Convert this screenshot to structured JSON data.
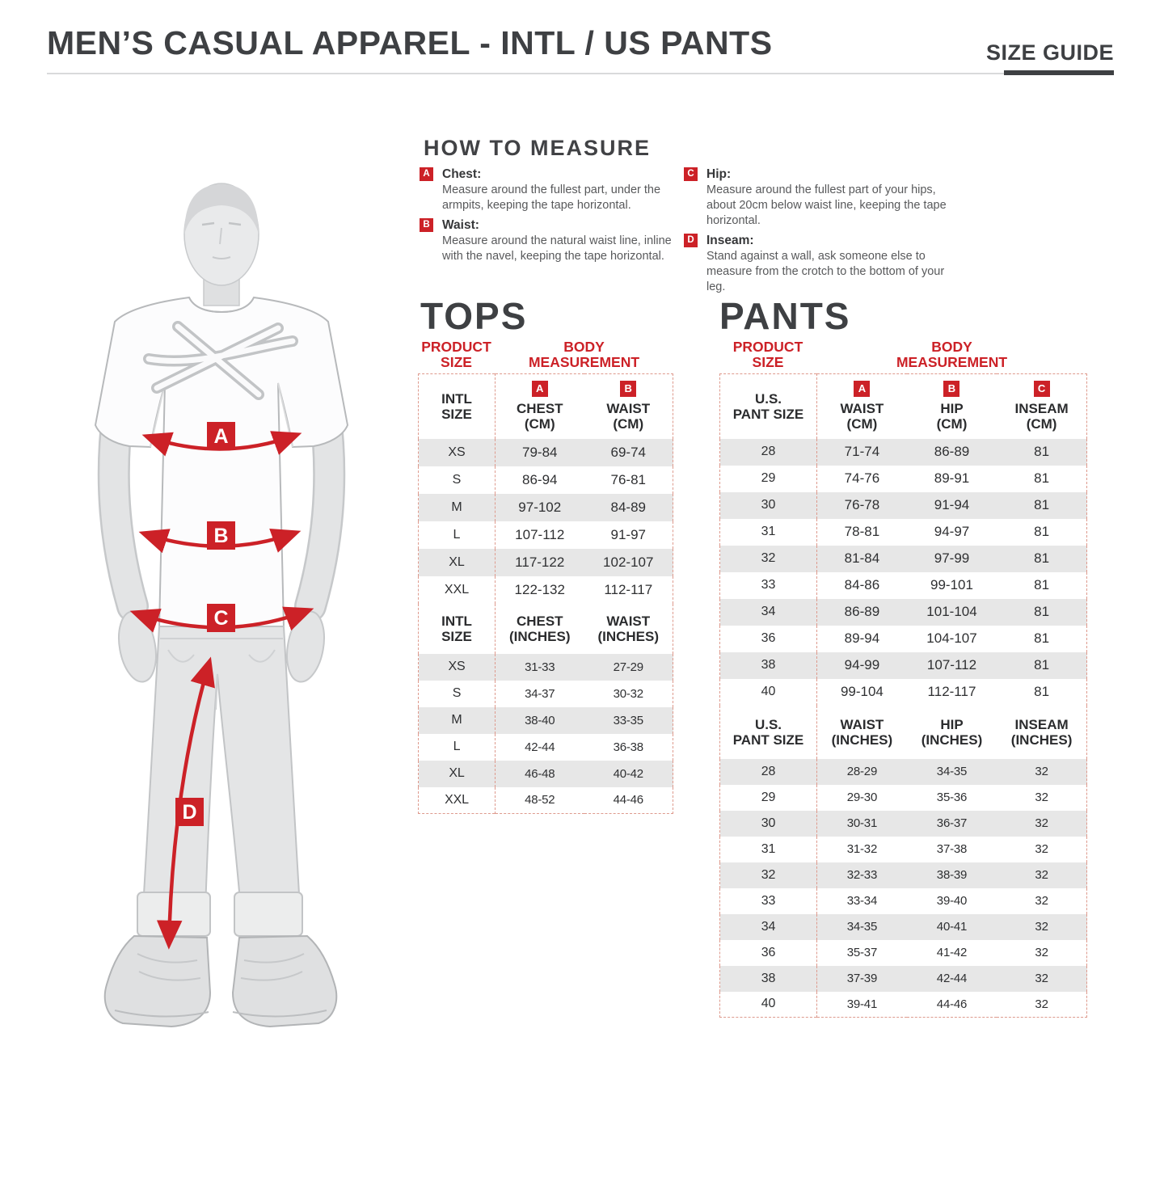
{
  "header": {
    "title": "MEN’S CASUAL APPAREL - INTL / US PANTS",
    "size_guide": "SIZE GUIDE"
  },
  "colors": {
    "accent_red": "#cc2127",
    "dashed_border": "#de9a8d",
    "row_gray": "#e7e7e7",
    "heading_gray": "#3e4043",
    "desc_gray": "#58595b"
  },
  "how_to_measure": {
    "heading": "HOW TO MEASURE",
    "items": [
      {
        "key": "A",
        "label": "Chest:",
        "desc": "Measure around the fullest part, under the armpits, keeping the tape horizontal."
      },
      {
        "key": "B",
        "label": "Waist:",
        "desc": "Measure around the natural waist line, inline with the navel, keeping the tape horizontal."
      },
      {
        "key": "C",
        "label": "Hip:",
        "desc": "Measure around the fullest part of your hips, about 20cm below waist line, keeping the tape horizontal."
      },
      {
        "key": "D",
        "label": "Inseam:",
        "desc": "Stand against a wall, ask someone else to measure from the crotch to the bottom of your leg."
      }
    ]
  },
  "figure": {
    "markers": [
      "A",
      "B",
      "C",
      "D"
    ]
  },
  "tops": {
    "heading": "TOPS",
    "product_size_label": "PRODUCT\nSIZE",
    "body_measurement_label": "BODY\nMEASUREMENT",
    "cm_section": {
      "size_header": "INTL\nSIZE",
      "columns": [
        {
          "badge": "A",
          "label": "CHEST\n(CM)"
        },
        {
          "badge": "B",
          "label": "WAIST\n(CM)"
        }
      ],
      "rows": [
        [
          "XS",
          "79-84",
          "69-74"
        ],
        [
          "S",
          "86-94",
          "76-81"
        ],
        [
          "M",
          "97-102",
          "84-89"
        ],
        [
          "L",
          "107-112",
          "91-97"
        ],
        [
          "XL",
          "117-122",
          "102-107"
        ],
        [
          "XXL",
          "122-132",
          "112-117"
        ]
      ]
    },
    "inches_section": {
      "size_header": "INTL\nSIZE",
      "columns": [
        {
          "label": "CHEST\n(INCHES)"
        },
        {
          "label": "WAIST\n(INCHES)"
        }
      ],
      "rows": [
        [
          "XS",
          "31-33",
          "27-29"
        ],
        [
          "S",
          "34-37",
          "30-32"
        ],
        [
          "M",
          "38-40",
          "33-35"
        ],
        [
          "L",
          "42-44",
          "36-38"
        ],
        [
          "XL",
          "46-48",
          "40-42"
        ],
        [
          "XXL",
          "48-52",
          "44-46"
        ]
      ]
    }
  },
  "pants": {
    "heading": "PANTS",
    "product_size_label": "PRODUCT\nSIZE",
    "body_measurement_label": "BODY\nMEASUREMENT",
    "cm_section": {
      "size_header": "U.S.\nPANT SIZE",
      "columns": [
        {
          "badge": "A",
          "label": "WAIST\n(CM)"
        },
        {
          "badge": "B",
          "label": "HIP\n(CM)"
        },
        {
          "badge": "C",
          "label": "INSEAM\n(CM)"
        }
      ],
      "rows": [
        [
          "28",
          "71-74",
          "86-89",
          "81"
        ],
        [
          "29",
          "74-76",
          "89-91",
          "81"
        ],
        [
          "30",
          "76-78",
          "91-94",
          "81"
        ],
        [
          "31",
          "78-81",
          "94-97",
          "81"
        ],
        [
          "32",
          "81-84",
          "97-99",
          "81"
        ],
        [
          "33",
          "84-86",
          "99-101",
          "81"
        ],
        [
          "34",
          "86-89",
          "101-104",
          "81"
        ],
        [
          "36",
          "89-94",
          "104-107",
          "81"
        ],
        [
          "38",
          "94-99",
          "107-112",
          "81"
        ],
        [
          "40",
          "99-104",
          "112-117",
          "81"
        ]
      ]
    },
    "inches_section": {
      "size_header": "U.S.\nPANT SIZE",
      "columns": [
        {
          "label": "WAIST\n(INCHES)"
        },
        {
          "label": "HIP\n(INCHES)"
        },
        {
          "label": "INSEAM\n(INCHES)"
        }
      ],
      "rows": [
        [
          "28",
          "28-29",
          "34-35",
          "32"
        ],
        [
          "29",
          "29-30",
          "35-36",
          "32"
        ],
        [
          "30",
          "30-31",
          "36-37",
          "32"
        ],
        [
          "31",
          "31-32",
          "37-38",
          "32"
        ],
        [
          "32",
          "32-33",
          "38-39",
          "32"
        ],
        [
          "33",
          "33-34",
          "39-40",
          "32"
        ],
        [
          "34",
          "34-35",
          "40-41",
          "32"
        ],
        [
          "36",
          "35-37",
          "41-42",
          "32"
        ],
        [
          "38",
          "37-39",
          "42-44",
          "32"
        ],
        [
          "40",
          "39-41",
          "44-46",
          "32"
        ]
      ]
    }
  }
}
